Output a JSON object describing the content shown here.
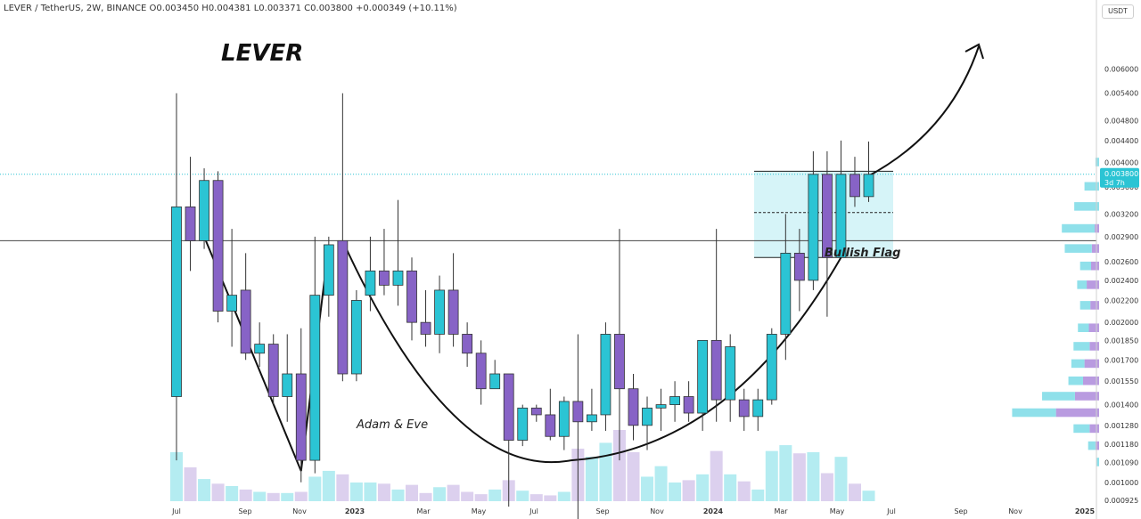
{
  "header": {
    "info_line": "LEVER / TetherUS, 2W, BINANCE  O0.003450  H0.004381  L0.003371  C0.003800  +0.000349 (+10.11%)",
    "currency_button": "USDT"
  },
  "colors": {
    "up": "#2bc4d4",
    "down": "#8763c6",
    "vol_up": "#b4ecf1",
    "vol_down": "#dcd0ee",
    "flag_fill": "#d6f4f8",
    "price_tag": "#2bc4d4"
  },
  "chart_data": {
    "type": "candlestick",
    "title": "LEVER",
    "xlabel": "",
    "ylabel": "",
    "y_scale": "log",
    "ylim": [
      0.000925,
      0.0068
    ],
    "x_ticks": [
      "Jul",
      "Sep",
      "Nov",
      "2023",
      "Mar",
      "May",
      "Jul",
      "Sep",
      "Nov",
      "2024",
      "Mar",
      "May",
      "Jul",
      "Sep",
      "Nov",
      "2025"
    ],
    "y_ticks": [
      "0.006000",
      "0.005400",
      "0.004800",
      "0.004400",
      "0.004000",
      "0.003600",
      "0.003200",
      "0.002900",
      "0.002600",
      "0.002400",
      "0.002200",
      "0.002000",
      "0.001850",
      "0.001700",
      "0.001550",
      "0.001400",
      "0.001280",
      "0.001180",
      "0.001090",
      "0.001000",
      "0.000925"
    ],
    "candles": [
      {
        "o": 0.00145,
        "h": 0.0054,
        "l": 0.0011,
        "c": 0.0033,
        "v": 0.42
      },
      {
        "o": 0.0033,
        "h": 0.0041,
        "l": 0.0025,
        "c": 0.00285,
        "v": 0.29
      },
      {
        "o": 0.00285,
        "h": 0.0039,
        "l": 0.00275,
        "c": 0.0037,
        "v": 0.19
      },
      {
        "o": 0.0037,
        "h": 0.00385,
        "l": 0.002,
        "c": 0.0021,
        "v": 0.15
      },
      {
        "o": 0.0021,
        "h": 0.003,
        "l": 0.0018,
        "c": 0.00225,
        "v": 0.13
      },
      {
        "o": 0.0023,
        "h": 0.0027,
        "l": 0.0017,
        "c": 0.00175,
        "v": 0.1
      },
      {
        "o": 0.00175,
        "h": 0.002,
        "l": 0.00165,
        "c": 0.00182,
        "v": 0.08
      },
      {
        "o": 0.00182,
        "h": 0.0019,
        "l": 0.0014,
        "c": 0.00145,
        "v": 0.07
      },
      {
        "o": 0.00145,
        "h": 0.0019,
        "l": 0.0013,
        "c": 0.0016,
        "v": 0.07
      },
      {
        "o": 0.0016,
        "h": 0.00195,
        "l": 0.001,
        "c": 0.0011,
        "v": 0.08
      },
      {
        "o": 0.0011,
        "h": 0.0029,
        "l": 0.00104,
        "c": 0.00225,
        "v": 0.21
      },
      {
        "o": 0.00225,
        "h": 0.0029,
        "l": 0.00205,
        "c": 0.0028,
        "v": 0.26
      },
      {
        "o": 0.00285,
        "h": 0.0054,
        "l": 0.00155,
        "c": 0.0016,
        "v": 0.23
      },
      {
        "o": 0.0016,
        "h": 0.0023,
        "l": 0.00155,
        "c": 0.0022,
        "v": 0.16
      },
      {
        "o": 0.00225,
        "h": 0.0029,
        "l": 0.0021,
        "c": 0.0025,
        "v": 0.16
      },
      {
        "o": 0.0025,
        "h": 0.003,
        "l": 0.00225,
        "c": 0.00235,
        "v": 0.15
      },
      {
        "o": 0.00235,
        "h": 0.0034,
        "l": 0.00215,
        "c": 0.0025,
        "v": 0.1
      },
      {
        "o": 0.0025,
        "h": 0.00265,
        "l": 0.00185,
        "c": 0.002,
        "v": 0.14
      },
      {
        "o": 0.002,
        "h": 0.0023,
        "l": 0.0018,
        "c": 0.0019,
        "v": 0.07
      },
      {
        "o": 0.0019,
        "h": 0.00245,
        "l": 0.00175,
        "c": 0.0023,
        "v": 0.12
      },
      {
        "o": 0.0023,
        "h": 0.0027,
        "l": 0.0018,
        "c": 0.0019,
        "v": 0.14
      },
      {
        "o": 0.0019,
        "h": 0.002,
        "l": 0.00165,
        "c": 0.00175,
        "v": 0.08
      },
      {
        "o": 0.00175,
        "h": 0.00185,
        "l": 0.0014,
        "c": 0.0015,
        "v": 0.06
      },
      {
        "o": 0.0015,
        "h": 0.0017,
        "l": 0.0015,
        "c": 0.0016,
        "v": 0.1
      },
      {
        "o": 0.0016,
        "h": 0.0016,
        "l": 0.0009,
        "c": 0.0012,
        "v": 0.18
      },
      {
        "o": 0.0012,
        "h": 0.0014,
        "l": 0.00117,
        "c": 0.00138,
        "v": 0.09
      },
      {
        "o": 0.00138,
        "h": 0.0014,
        "l": 0.0013,
        "c": 0.00134,
        "v": 0.06
      },
      {
        "o": 0.00134,
        "h": 0.0015,
        "l": 0.0012,
        "c": 0.00122,
        "v": 0.05
      },
      {
        "o": 0.00122,
        "h": 0.00145,
        "l": 0.00115,
        "c": 0.00142,
        "v": 0.08
      },
      {
        "o": 0.00142,
        "h": 0.0019,
        "l": 0.00085,
        "c": 0.0013,
        "v": 0.45
      },
      {
        "o": 0.0013,
        "h": 0.0015,
        "l": 0.00125,
        "c": 0.00134,
        "v": 0.38
      },
      {
        "o": 0.00134,
        "h": 0.002,
        "l": 0.00125,
        "c": 0.0019,
        "v": 0.5
      },
      {
        "o": 0.0019,
        "h": 0.003,
        "l": 0.0011,
        "c": 0.0015,
        "v": 0.61
      },
      {
        "o": 0.0015,
        "h": 0.0016,
        "l": 0.0012,
        "c": 0.00128,
        "v": 0.42
      },
      {
        "o": 0.00128,
        "h": 0.00145,
        "l": 0.00115,
        "c": 0.00138,
        "v": 0.21
      },
      {
        "o": 0.00138,
        "h": 0.0015,
        "l": 0.00125,
        "c": 0.0014,
        "v": 0.3
      },
      {
        "o": 0.0014,
        "h": 0.00155,
        "l": 0.0013,
        "c": 0.00145,
        "v": 0.16
      },
      {
        "o": 0.00145,
        "h": 0.00155,
        "l": 0.0013,
        "c": 0.00135,
        "v": 0.18
      },
      {
        "o": 0.00135,
        "h": 0.00185,
        "l": 0.00125,
        "c": 0.00185,
        "v": 0.23
      },
      {
        "o": 0.00185,
        "h": 0.003,
        "l": 0.0013,
        "c": 0.00143,
        "v": 0.43
      },
      {
        "o": 0.00143,
        "h": 0.0019,
        "l": 0.0013,
        "c": 0.0018,
        "v": 0.23
      },
      {
        "o": 0.00143,
        "h": 0.0015,
        "l": 0.00125,
        "c": 0.00133,
        "v": 0.17
      },
      {
        "o": 0.00133,
        "h": 0.0015,
        "l": 0.00125,
        "c": 0.00143,
        "v": 0.1
      },
      {
        "o": 0.00143,
        "h": 0.00195,
        "l": 0.0014,
        "c": 0.0019,
        "v": 0.43
      },
      {
        "o": 0.0019,
        "h": 0.0032,
        "l": 0.0017,
        "c": 0.0027,
        "v": 0.48
      },
      {
        "o": 0.0027,
        "h": 0.003,
        "l": 0.0021,
        "c": 0.0024,
        "v": 0.41
      },
      {
        "o": 0.0024,
        "h": 0.0042,
        "l": 0.0023,
        "c": 0.0038,
        "v": 0.42
      },
      {
        "o": 0.0038,
        "h": 0.0042,
        "l": 0.00205,
        "c": 0.00265,
        "v": 0.24
      },
      {
        "o": 0.00265,
        "h": 0.0044,
        "l": 0.00265,
        "c": 0.0038,
        "v": 0.38
      },
      {
        "o": 0.0038,
        "h": 0.0041,
        "l": 0.0033,
        "c": 0.00345,
        "v": 0.15
      },
      {
        "o": 0.00345,
        "h": 0.00438,
        "l": 0.00337,
        "c": 0.0038,
        "v": 0.09
      }
    ],
    "current_price": "0.003800",
    "countdown": "3d 7h",
    "annotations": {
      "adam_eve": "Adam & Eve",
      "bullish_flag": "Bullish Flag"
    },
    "levels": {
      "resistance": 0.00285,
      "flag_top": 0.00385,
      "flag_mid": 0.00322,
      "flag_bottom": 0.00265
    },
    "volume_profile": [
      {
        "price": 0.004,
        "up": 0.05,
        "down": 0.0
      },
      {
        "price": 0.0036,
        "up": 0.2,
        "down": 0.0
      },
      {
        "price": 0.0033,
        "up": 0.34,
        "down": 0.0
      },
      {
        "price": 0.003,
        "up": 0.45,
        "down": 0.06
      },
      {
        "price": 0.00275,
        "up": 0.37,
        "down": 0.1
      },
      {
        "price": 0.00255,
        "up": 0.15,
        "down": 0.11
      },
      {
        "price": 0.00235,
        "up": 0.13,
        "down": 0.17
      },
      {
        "price": 0.00215,
        "up": 0.14,
        "down": 0.12
      },
      {
        "price": 0.00195,
        "up": 0.15,
        "down": 0.14
      },
      {
        "price": 0.0018,
        "up": 0.22,
        "down": 0.13
      },
      {
        "price": 0.00167,
        "up": 0.18,
        "down": 0.2
      },
      {
        "price": 0.00155,
        "up": 0.2,
        "down": 0.22
      },
      {
        "price": 0.00145,
        "up": 0.45,
        "down": 0.33
      },
      {
        "price": 0.00135,
        "up": 0.6,
        "down": 0.59
      },
      {
        "price": 0.00126,
        "up": 0.22,
        "down": 0.13
      },
      {
        "price": 0.00117,
        "up": 0.1,
        "down": 0.05
      },
      {
        "price": 0.00109,
        "up": 0.04,
        "down": 0.0
      }
    ]
  }
}
